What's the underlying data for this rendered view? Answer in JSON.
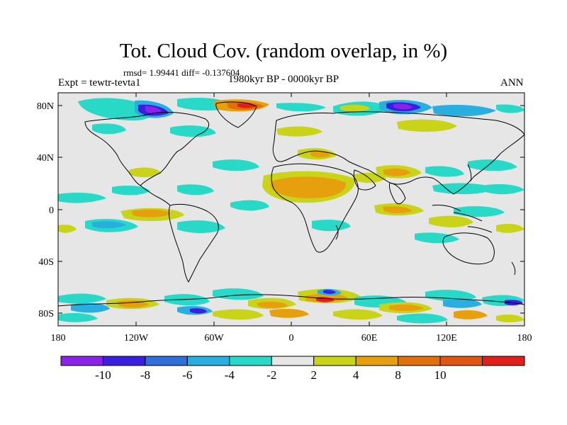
{
  "title": "Tot. Cloud Cov. (random overlap, in %)",
  "stats": "rmsd= 1.99441 diff= -0.137604",
  "expt": "Expt = tewtr-tevta1",
  "period": "1980kyr BP - 0000kyr BP",
  "season": "ANN",
  "lat_labels": [
    "80N",
    "40N",
    "0",
    "40S",
    "80S"
  ],
  "lon_labels": [
    "180",
    "120W",
    "60W",
    "0",
    "60E",
    "120E",
    "180"
  ],
  "colorbar": {
    "labels": [
      "-10",
      "-8",
      "-6",
      "-4",
      "-2",
      "2",
      "4",
      "8",
      "10"
    ],
    "colors": [
      "#8a22e8",
      "#3a1fe0",
      "#2f6fd8",
      "#29aee0",
      "#28d9c8",
      "#e6e6e6",
      "#c9d419",
      "#e6a00e",
      "#e0700a",
      "#e05512",
      "#e0201a"
    ]
  },
  "map_colors": {
    "background": "#e6e6e6",
    "coastline": "#000000"
  }
}
